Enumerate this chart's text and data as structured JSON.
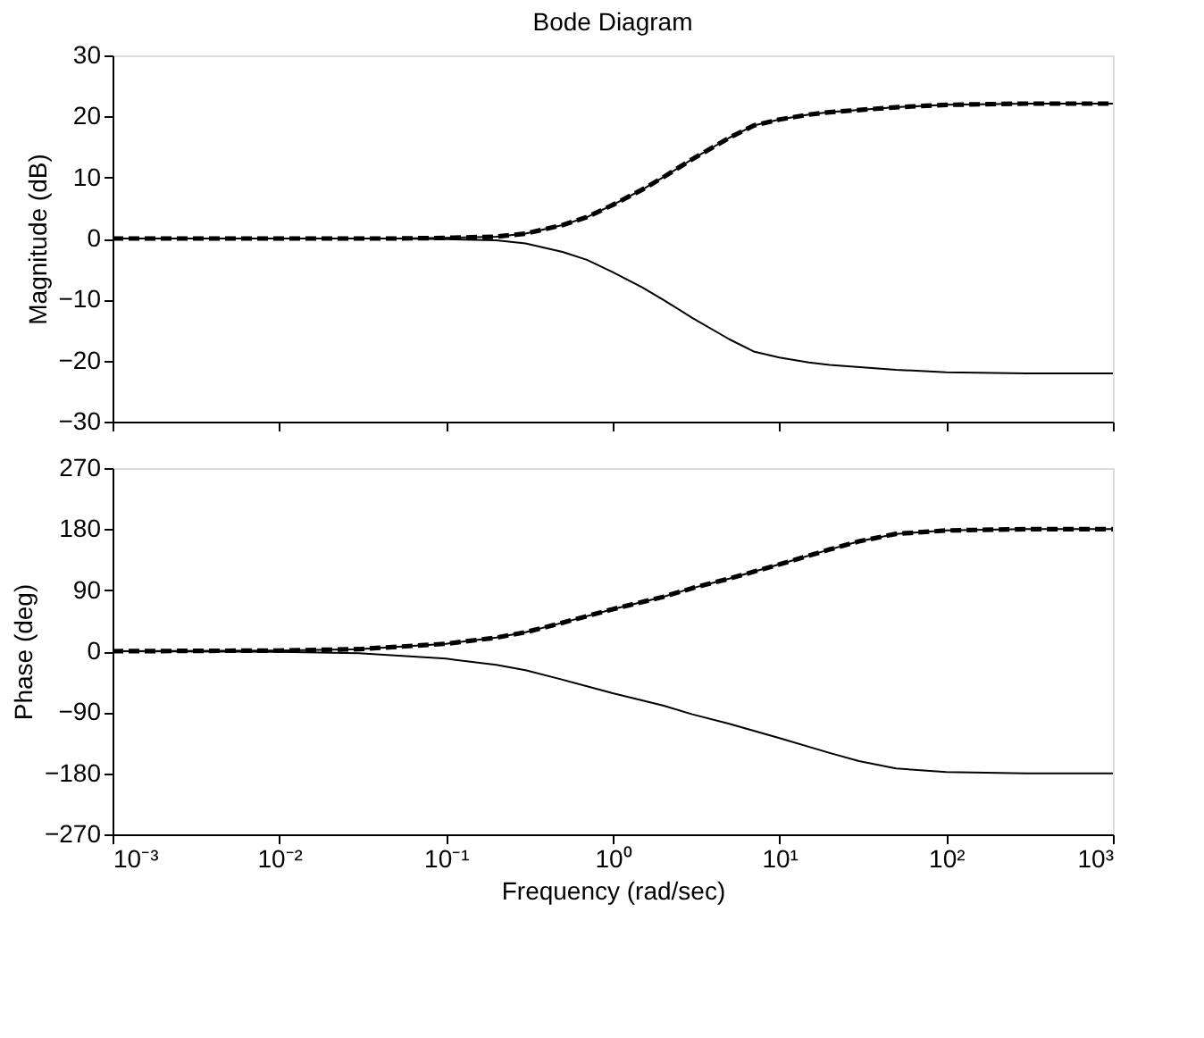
{
  "chart_data": [
    {
      "type": "line",
      "title": "Bode Diagram",
      "ylabel": "Magnitude (dB)",
      "log": "x",
      "xlim": [
        0.001,
        1000
      ],
      "xticks": [
        {
          "value": 0.001,
          "label": null
        },
        {
          "value": 0.01,
          "label": null
        },
        {
          "value": 0.1,
          "label": null
        },
        {
          "value": 1,
          "label": null
        },
        {
          "value": 10,
          "label": null
        },
        {
          "value": 100,
          "label": null
        },
        {
          "value": 1000,
          "label": null
        }
      ],
      "ylim": [
        -30,
        30
      ],
      "yticks": [
        -30,
        -20,
        -10,
        0,
        10,
        20,
        30
      ],
      "tick_labels": "y",
      "grid": false,
      "legend": false,
      "x": [
        0.001,
        0.01,
        0.05,
        0.1,
        0.2,
        0.3,
        0.5,
        0.7,
        1,
        1.5,
        2,
        3,
        5,
        7,
        10,
        15,
        20,
        50,
        100,
        300,
        1000
      ],
      "series": [
        {
          "color": "#000000",
          "line_style": "solid",
          "values": [
            0,
            0,
            0,
            0.1,
            0.3,
            0.8,
            2.2,
            3.5,
            5.5,
            8,
            10,
            13,
            16.5,
            18.5,
            19.5,
            20.3,
            20.7,
            21.5,
            21.9,
            22.1,
            22.1
          ]
        },
        {
          "color": "#000000",
          "line_style": "dashed",
          "values": [
            0,
            0,
            0,
            0.1,
            0.3,
            0.8,
            2.2,
            3.5,
            5.5,
            8,
            10,
            13,
            16.5,
            18.5,
            19.5,
            20.3,
            20.7,
            21.5,
            21.9,
            22.1,
            22.1
          ]
        },
        {
          "color": "#000000",
          "line_style": "solid",
          "values": [
            0,
            0,
            0,
            -0.1,
            -0.3,
            -0.8,
            -2.2,
            -3.5,
            -5.5,
            -8,
            -10,
            -13,
            -16.5,
            -18.5,
            -19.5,
            -20.3,
            -20.7,
            -21.5,
            -21.9,
            -22.1,
            -22.1
          ]
        }
      ]
    },
    {
      "type": "line",
      "xlabel": "Frequency (rad/sec)",
      "ylabel": "Phase (deg)",
      "log": "x",
      "xlim": [
        0.001,
        1000
      ],
      "xticks": [
        {
          "value": 0.001,
          "label": "10⁻³"
        },
        {
          "value": 0.01,
          "label": "10⁻²"
        },
        {
          "value": 0.1,
          "label": "10⁻¹"
        },
        {
          "value": 1,
          "label": "10⁰"
        },
        {
          "value": 10,
          "label": "10¹"
        },
        {
          "value": 100,
          "label": "10²"
        },
        {
          "value": 1000,
          "label": "10³"
        }
      ],
      "ylim": [
        -270,
        270
      ],
      "yticks": [
        -270,
        -180,
        -90,
        0,
        90,
        180,
        270
      ],
      "grid": false,
      "legend": false,
      "x": [
        0.001,
        0.01,
        0.03,
        0.1,
        0.2,
        0.3,
        0.5,
        1,
        2,
        3,
        5,
        10,
        20,
        30,
        50,
        100,
        300,
        1000
      ],
      "series": [
        {
          "color": "#000000",
          "line_style": "solid",
          "values": [
            0,
            1,
            3,
            11,
            20,
            28,
            42,
            62,
            80,
            93,
            107,
            128,
            150,
            162,
            173,
            178,
            180,
            180
          ]
        },
        {
          "color": "#000000",
          "line_style": "dashed",
          "values": [
            0,
            1,
            3,
            11,
            20,
            28,
            42,
            62,
            80,
            93,
            107,
            128,
            150,
            162,
            173,
            178,
            180,
            180
          ]
        },
        {
          "color": "#000000",
          "line_style": "solid",
          "values": [
            0,
            -1,
            -3,
            -11,
            -20,
            -28,
            -42,
            -62,
            -80,
            -93,
            -107,
            -128,
            -150,
            -162,
            -173,
            -178,
            -180,
            -180
          ]
        }
      ]
    }
  ]
}
